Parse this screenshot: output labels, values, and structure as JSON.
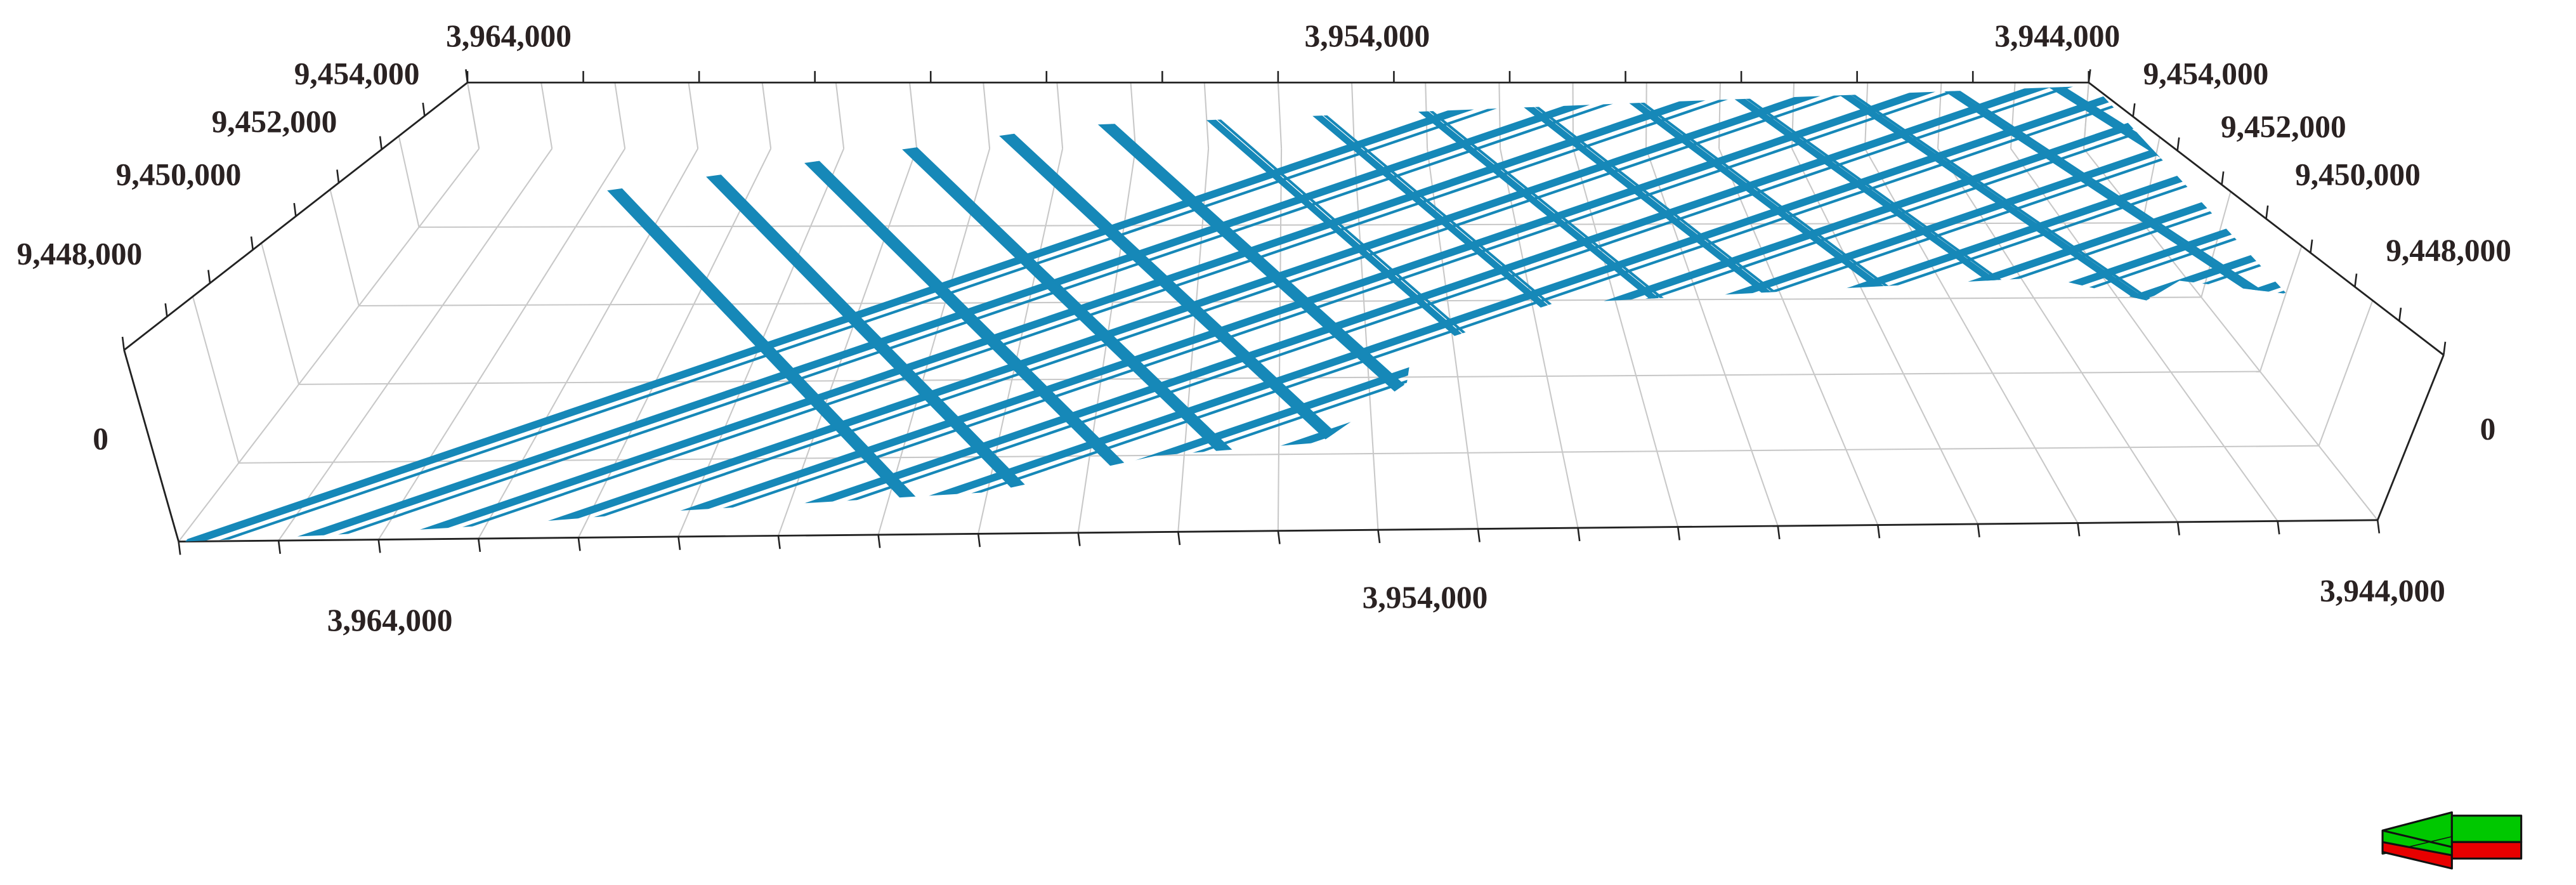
{
  "colors": {
    "survey_lines": "#1688b8",
    "grid": "#c8c8c8",
    "axis": "#222222",
    "arrow_top": "#00c800",
    "arrow_bottom": "#e80000"
  },
  "axes": {
    "top_x_ticks": [
      "3,964,000",
      "3,954,000",
      "3,944,000"
    ],
    "bottom_x_ticks": [
      "3,964,000",
      "3,954,000",
      "3,944,000"
    ],
    "left_y_ticks": [
      "9,454,000",
      "9,452,000",
      "9,450,000",
      "9,448,000"
    ],
    "right_y_ticks": [
      "9,454,000",
      "9,452,000",
      "9,450,000",
      "9,448,000"
    ],
    "left_z_tick": "0",
    "right_z_tick": "0"
  },
  "orientation_indicator": {
    "icon": "north-arrow-icon"
  }
}
